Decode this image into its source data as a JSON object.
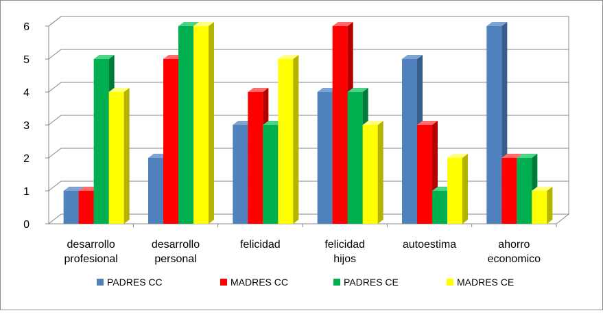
{
  "chart_data": {
    "type": "bar",
    "categories": [
      [
        "desarrollo",
        "profesional"
      ],
      [
        "desarrollo",
        "personal"
      ],
      [
        "felicidad"
      ],
      [
        "felicidad",
        "hijos"
      ],
      [
        "autoestima"
      ],
      [
        "ahorro",
        "economico"
      ]
    ],
    "series": [
      {
        "name": "PADRES CC",
        "values": [
          1,
          2,
          3,
          4,
          5,
          6
        ],
        "color": "#4F81BD",
        "side": "#385D8A",
        "top": "#7FA3D1"
      },
      {
        "name": "MADRES CC",
        "values": [
          1,
          5,
          4,
          6,
          3,
          2
        ],
        "color": "#FF0000",
        "side": "#B30000",
        "top": "#FF6A6A"
      },
      {
        "name": "PADRES CE",
        "values": [
          5,
          6,
          3,
          4,
          1,
          2
        ],
        "color": "#00B050",
        "side": "#007A38",
        "top": "#4CD486"
      },
      {
        "name": "MADRES CE",
        "values": [
          4,
          6,
          5,
          3,
          2,
          1
        ],
        "color": "#FFFF00",
        "side": "#B3B300",
        "top": "#FFFF80"
      }
    ],
    "yticks": [
      0,
      1,
      2,
      3,
      4,
      5,
      6
    ],
    "ylim": [
      0,
      6
    ],
    "grid": true,
    "legend": "bottom",
    "three_d": true
  }
}
